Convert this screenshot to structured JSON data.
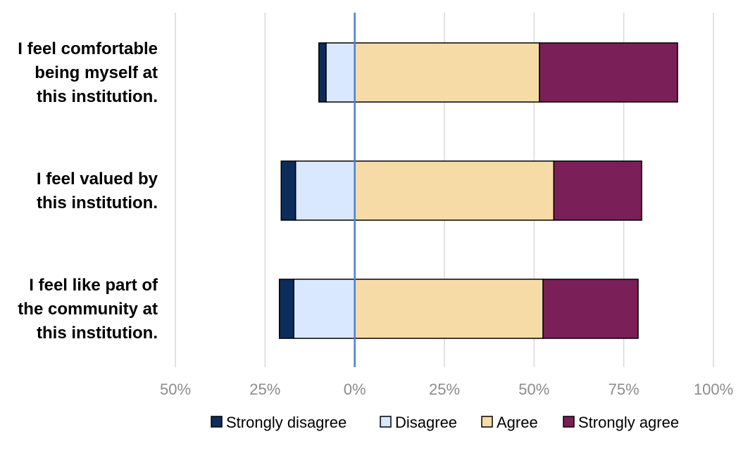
{
  "chart_data": {
    "type": "bar",
    "orientation": "horizontal",
    "stacked": "diverging",
    "categories": [
      "I feel comfortable being myself at this institution.",
      "I feel valued by this institution.",
      "I feel like part of the community at this institution."
    ],
    "category_label_lines": [
      [
        "I feel comfortable",
        "being myself at",
        "this institution."
      ],
      [
        "I feel valued by",
        "this institution."
      ],
      [
        "I feel like part of",
        "the community at",
        "this institution."
      ]
    ],
    "series": [
      {
        "name": "Strongly disagree",
        "color": "#0c2d5a",
        "values": [
          2,
          4,
          4
        ],
        "direction": "negative"
      },
      {
        "name": "Disagree",
        "color": "#d9e8ff",
        "values": [
          8,
          16.5,
          17
        ],
        "direction": "negative"
      },
      {
        "name": "Agree",
        "color": "#f6dba7",
        "values": [
          51.5,
          55.5,
          52.5
        ],
        "direction": "positive"
      },
      {
        "name": "Strongly agree",
        "color": "#7a1f57",
        "values": [
          38.5,
          24.5,
          26.5
        ],
        "direction": "positive"
      }
    ],
    "xlim": [
      -50,
      100
    ],
    "xticks": [
      -50,
      -25,
      0,
      25,
      50,
      75,
      100
    ],
    "xtick_labels": [
      "50%",
      "25%",
      "0%",
      "25%",
      "50%",
      "75%",
      "100%"
    ],
    "grid": true,
    "legend_position": "bottom",
    "title": "",
    "xlabel": "",
    "ylabel": ""
  }
}
